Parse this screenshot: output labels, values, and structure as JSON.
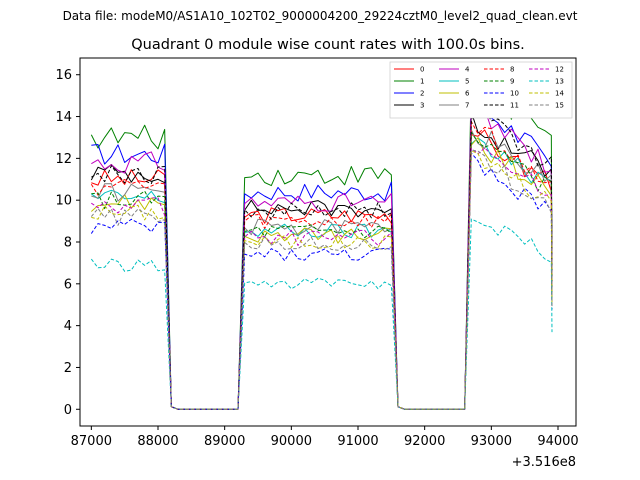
{
  "figure": {
    "suptitle": "Data file: modeM0/AS1A10_102T02_9000004200_29224cztM0_level2_quad_clean.evt"
  },
  "chart_data": {
    "type": "line",
    "title": "Quadrant 0 module wise count rates with 100.0s bins.",
    "xlabel": "",
    "ylabel": "",
    "x_offset_label": "+3.516e8",
    "x_offset": 351600000,
    "xlim": [
      86830,
      94270
    ],
    "ylim": [
      -0.8,
      16.8
    ],
    "x_ticks": [
      87000,
      88000,
      89000,
      90000,
      91000,
      92000,
      93000,
      94000
    ],
    "x_tick_labels": [
      "87000",
      "88000",
      "89000",
      "90000",
      "91000",
      "92000",
      "93000",
      "94000"
    ],
    "y_ticks": [
      0,
      2,
      4,
      6,
      8,
      10,
      12,
      14,
      16
    ],
    "y_tick_labels": [
      "0",
      "2",
      "4",
      "6",
      "8",
      "10",
      "12",
      "14",
      "16"
    ],
    "grid": false,
    "legend": {
      "placement": "top-right",
      "columns": 4
    },
    "segments": [
      {
        "start": 87000,
        "end": 88100
      },
      {
        "start": 89300,
        "end": 91500
      },
      {
        "start": 92700,
        "end": 93900
      }
    ],
    "gaps": [
      {
        "start": 88200,
        "end": 89200
      },
      {
        "start": 91600,
        "end": 92600
      }
    ],
    "series": [
      {
        "name": "0",
        "color": "#ff0000",
        "dash": "solid",
        "levels": [
          11.0,
          9.3,
          11.9
        ]
      },
      {
        "name": "1",
        "color": "#008000",
        "dash": "solid",
        "levels": [
          13.0,
          11.2,
          14.2
        ]
      },
      {
        "name": "2",
        "color": "#0000ff",
        "dash": "solid",
        "levels": [
          12.2,
          10.4,
          13.2
        ]
      },
      {
        "name": "3",
        "color": "#000000",
        "dash": "solid",
        "levels": [
          11.3,
          9.6,
          12.4
        ]
      },
      {
        "name": "4",
        "color": "#bf00bf",
        "dash": "solid",
        "levels": [
          11.8,
          9.9,
          12.9
        ]
      },
      {
        "name": "5",
        "color": "#00bfbf",
        "dash": "solid",
        "levels": [
          10.1,
          8.5,
          11.7
        ]
      },
      {
        "name": "6",
        "color": "#bfbf00",
        "dash": "solid",
        "levels": [
          9.9,
          8.3,
          11.5
        ]
      },
      {
        "name": "7",
        "color": "#808080",
        "dash": "solid",
        "levels": [
          10.4,
          8.7,
          12.0
        ]
      },
      {
        "name": "8",
        "color": "#ff0000",
        "dash": "dashed",
        "levels": [
          10.7,
          9.0,
          12.2
        ]
      },
      {
        "name": "9",
        "color": "#008000",
        "dash": "dashed",
        "levels": [
          10.0,
          8.5,
          11.6
        ]
      },
      {
        "name": "10",
        "color": "#0000ff",
        "dash": "dashed",
        "levels": [
          8.7,
          7.4,
          10.6
        ]
      },
      {
        "name": "11",
        "color": "#000000",
        "dash": "dashed",
        "levels": [
          11.2,
          9.5,
          12.8
        ]
      },
      {
        "name": "12",
        "color": "#bf00bf",
        "dash": "dashed",
        "levels": [
          9.7,
          8.2,
          11.4
        ]
      },
      {
        "name": "13",
        "color": "#00bfbf",
        "dash": "dashed",
        "levels": [
          6.9,
          6.0,
          8.2
        ]
      },
      {
        "name": "14",
        "color": "#bfbf00",
        "dash": "dashed",
        "levels": [
          9.4,
          8.0,
          11.0
        ]
      },
      {
        "name": "15",
        "color": "#808080",
        "dash": "dashed",
        "levels": [
          9.2,
          7.9,
          10.9
        ]
      }
    ]
  }
}
